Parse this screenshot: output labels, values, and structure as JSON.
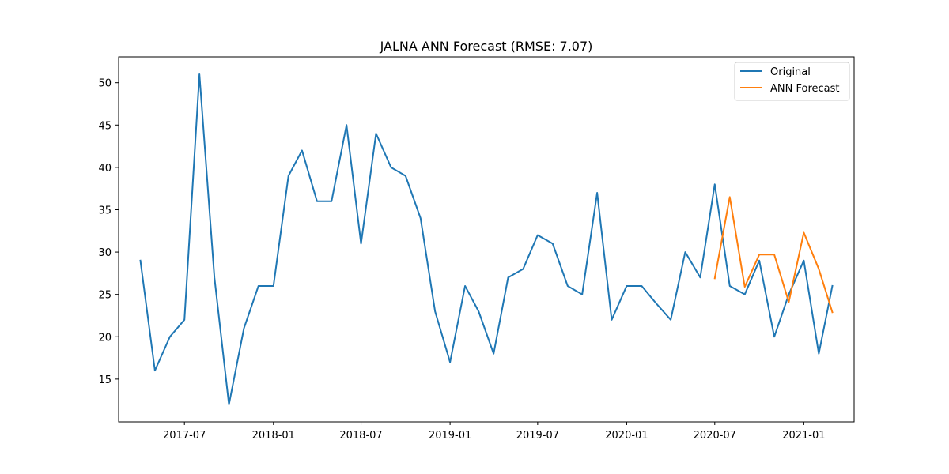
{
  "chart_data": {
    "type": "line",
    "title": "JALNA ANN Forecast (RMSE: 7.07)",
    "xlabel": "",
    "ylabel": "",
    "x_ticks": [
      "2017-07",
      "2018-01",
      "2018-07",
      "2019-01",
      "2019-07",
      "2020-01",
      "2020-07",
      "2021-01"
    ],
    "y_ticks": [
      15,
      20,
      25,
      30,
      35,
      40,
      45,
      50
    ],
    "xlim": [
      "2017-02-15",
      "2021-04-15"
    ],
    "ylim": [
      9.95,
      53.05
    ],
    "grid": false,
    "legend_position": "top-right",
    "series": [
      {
        "name": "Original",
        "color": "#1f77b4",
        "points": [
          [
            "2017-04-01",
            29
          ],
          [
            "2017-05-01",
            16
          ],
          [
            "2017-06-01",
            20
          ],
          [
            "2017-07-01",
            22
          ],
          [
            "2017-08-01",
            51
          ],
          [
            "2017-09-01",
            27
          ],
          [
            "2017-10-01",
            12
          ],
          [
            "2017-11-01",
            21
          ],
          [
            "2017-12-01",
            26
          ],
          [
            "2018-01-01",
            26
          ],
          [
            "2018-02-01",
            39
          ],
          [
            "2018-03-01",
            42
          ],
          [
            "2018-04-01",
            36
          ],
          [
            "2018-05-01",
            36
          ],
          [
            "2018-06-01",
            45
          ],
          [
            "2018-07-01",
            31
          ],
          [
            "2018-08-01",
            44
          ],
          [
            "2018-09-01",
            40
          ],
          [
            "2018-10-01",
            39
          ],
          [
            "2018-11-01",
            34
          ],
          [
            "2018-12-01",
            23
          ],
          [
            "2019-01-01",
            17
          ],
          [
            "2019-02-01",
            26
          ],
          [
            "2019-03-01",
            23
          ],
          [
            "2019-04-01",
            18
          ],
          [
            "2019-05-01",
            27
          ],
          [
            "2019-06-01",
            28
          ],
          [
            "2019-07-01",
            32
          ],
          [
            "2019-08-01",
            31
          ],
          [
            "2019-09-01",
            26
          ],
          [
            "2019-10-01",
            25
          ],
          [
            "2019-11-01",
            37
          ],
          [
            "2019-12-01",
            22
          ],
          [
            "2020-01-01",
            26
          ],
          [
            "2020-02-01",
            26
          ],
          [
            "2020-03-01",
            24
          ],
          [
            "2020-04-01",
            22
          ],
          [
            "2020-05-01",
            30
          ],
          [
            "2020-06-01",
            27
          ],
          [
            "2020-07-01",
            38
          ],
          [
            "2020-08-01",
            26
          ],
          [
            "2020-09-01",
            25
          ],
          [
            "2020-10-01",
            29
          ],
          [
            "2020-11-01",
            20
          ],
          [
            "2020-12-01",
            25
          ],
          [
            "2021-01-01",
            29
          ],
          [
            "2021-02-01",
            18
          ],
          [
            "2021-03-01",
            26
          ]
        ]
      },
      {
        "name": "ANN Forecast",
        "color": "#ff7f0e",
        "points": [
          [
            "2020-07-01",
            26.9
          ],
          [
            "2020-08-01",
            36.5
          ],
          [
            "2020-09-01",
            25.9
          ],
          [
            "2020-10-01",
            29.7
          ],
          [
            "2020-11-01",
            29.7
          ],
          [
            "2020-12-01",
            24.1
          ],
          [
            "2021-01-01",
            32.3
          ],
          [
            "2021-02-01",
            28.0
          ],
          [
            "2021-03-01",
            22.9
          ]
        ]
      }
    ]
  }
}
